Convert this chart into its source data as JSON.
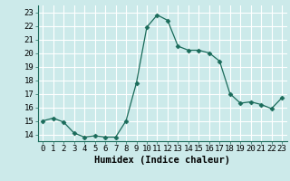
{
  "x": [
    0,
    1,
    2,
    3,
    4,
    5,
    6,
    7,
    8,
    9,
    10,
    11,
    12,
    13,
    14,
    15,
    16,
    17,
    18,
    19,
    20,
    21,
    22,
    23
  ],
  "y": [
    15.0,
    15.2,
    14.9,
    14.1,
    13.8,
    13.9,
    13.8,
    13.8,
    15.0,
    17.8,
    21.9,
    22.8,
    22.4,
    20.5,
    20.2,
    20.2,
    20.0,
    19.4,
    17.0,
    16.3,
    16.4,
    16.2,
    15.9,
    16.7
  ],
  "line_color": "#1a6b5a",
  "marker": "D",
  "marker_size": 2.5,
  "bg_color": "#cceaea",
  "grid_color": "#ffffff",
  "xlabel": "Humidex (Indice chaleur)",
  "xlim": [
    -0.5,
    23.5
  ],
  "ylim": [
    13.5,
    23.5
  ],
  "yticks": [
    14,
    15,
    16,
    17,
    18,
    19,
    20,
    21,
    22,
    23
  ],
  "xticks": [
    0,
    1,
    2,
    3,
    4,
    5,
    6,
    7,
    8,
    9,
    10,
    11,
    12,
    13,
    14,
    15,
    16,
    17,
    18,
    19,
    20,
    21,
    22,
    23
  ],
  "xlabel_fontsize": 7.5,
  "tick_fontsize": 6.5
}
